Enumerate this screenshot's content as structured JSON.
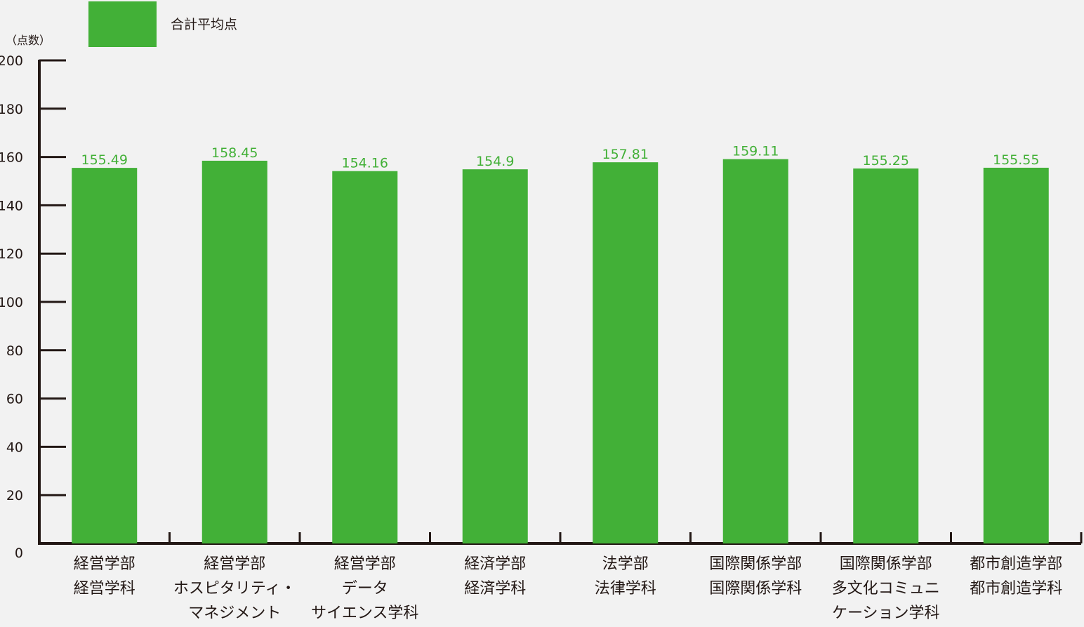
{
  "chart_data": {
    "type": "bar",
    "legend": "合計平均点",
    "legend_placement": "top-left",
    "ylabel": "（点数）",
    "xlabel": "",
    "ylim": [
      0,
      200
    ],
    "yticks": [
      0,
      20,
      40,
      60,
      80,
      100,
      120,
      140,
      160,
      180,
      200
    ],
    "categories": [
      "経営学部\n経営学科",
      "経営学部\nホスピタリティ・\nマネジメント",
      "経営学部\nデータ\nサイエンス学科",
      "経済学部\n経済学科",
      "法学部\n法律学科",
      "国際関係学部\n国際関係学科",
      "国際関係学部\n多文化コミュニ\nケーション学科",
      "都市創造学部\n都市創造学科"
    ],
    "values": [
      155.49,
      158.45,
      154.16,
      154.9,
      157.81,
      159.11,
      155.25,
      155.55
    ],
    "value_labels": [
      "155.49",
      "158.45",
      "154.16",
      "154.9",
      "157.81",
      "159.11",
      "155.25",
      "155.55"
    ],
    "grid": false,
    "colors": {
      "bar": "#42b037",
      "value_label": "#42b037",
      "axis": "#231815"
    }
  }
}
